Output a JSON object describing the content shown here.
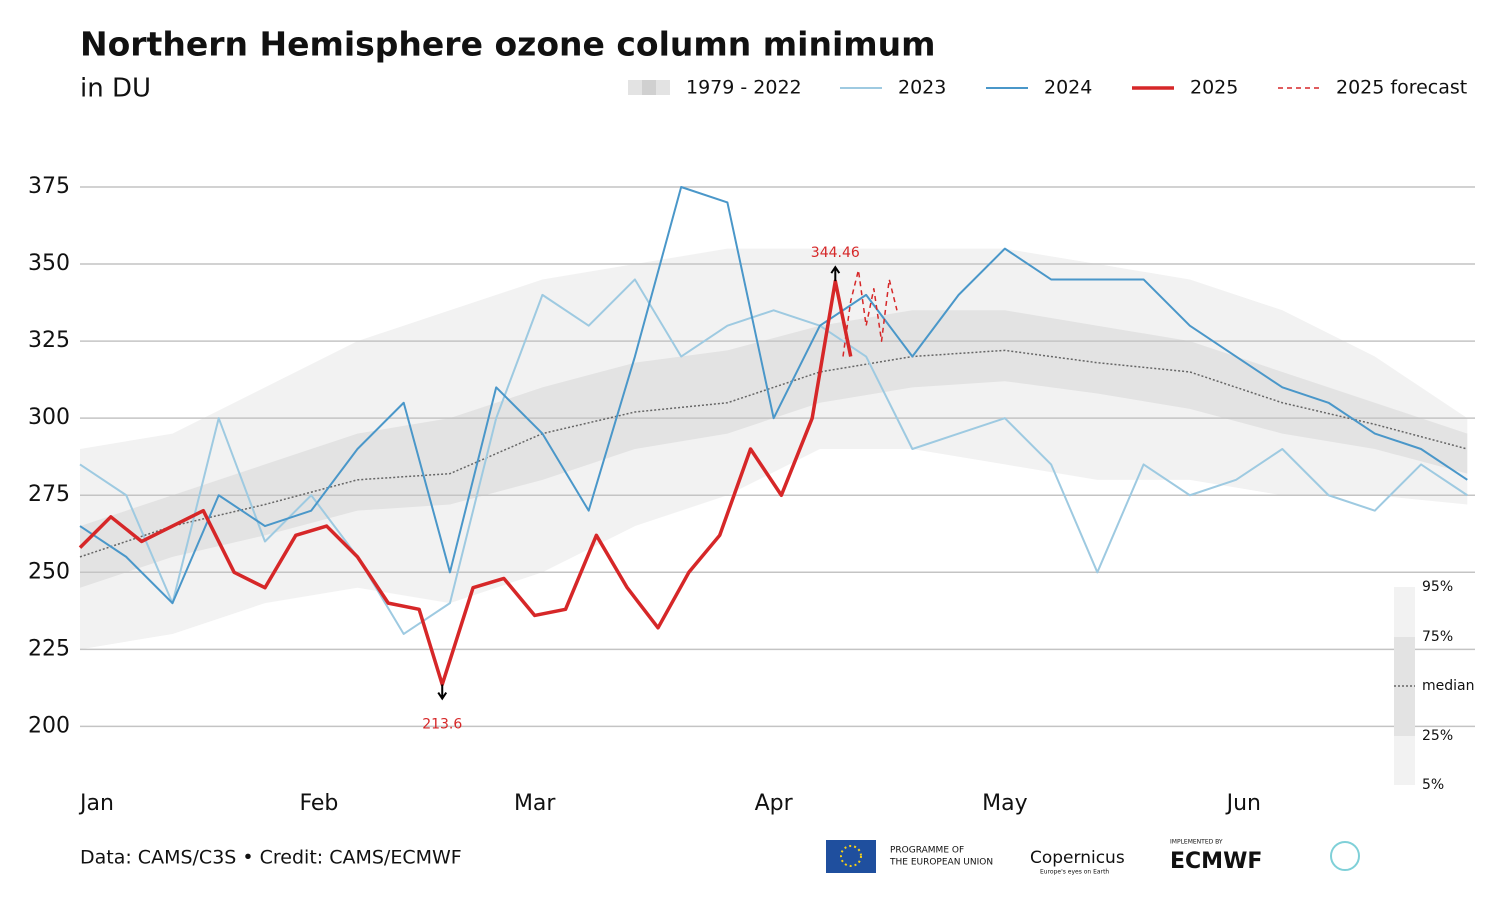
{
  "chart_data": {
    "type": "line",
    "title": "Northern Hemisphere ozone column minimum",
    "subtitle": "in DU",
    "source": "Data: CAMS/C3S • Credit: CAMS/ECMWF",
    "logos": [
      "PROGRAMME OF",
      "THE EUROPEAN UNION",
      "Copernicus",
      "Europe's eyes on Earth",
      "IMPLEMENTED BY",
      "ECMWF"
    ],
    "xlim": [
      1,
      182
    ],
    "xticks": [
      {
        "value": 1,
        "label": "Jan"
      },
      {
        "value": 32,
        "label": "Feb"
      },
      {
        "value": 60,
        "label": "Mar"
      },
      {
        "value": 91,
        "label": "Apr"
      },
      {
        "value": 121,
        "label": "May"
      },
      {
        "value": 152,
        "label": "Jun"
      }
    ],
    "ylim": [
      181,
      387
    ],
    "yticks": [
      200,
      225,
      250,
      275,
      300,
      325,
      350,
      375
    ],
    "grid": true,
    "legend": "top-right",
    "climatology": {
      "name": "1979 - 2022",
      "x": [
        1,
        13,
        25,
        37,
        49,
        61,
        73,
        85,
        97,
        109,
        121,
        133,
        145,
        157,
        169,
        181
      ],
      "p5": [
        225,
        230,
        240,
        245,
        240,
        250,
        265,
        275,
        290,
        290,
        285,
        280,
        280,
        275,
        275,
        272
      ],
      "p25": [
        245,
        255,
        262,
        270,
        272,
        280,
        290,
        295,
        305,
        310,
        312,
        308,
        303,
        295,
        290,
        282
      ],
      "median": [
        255,
        265,
        272,
        280,
        282,
        295,
        302,
        305,
        315,
        320,
        322,
        318,
        315,
        305,
        298,
        290
      ],
      "p75": [
        265,
        275,
        285,
        295,
        300,
        310,
        318,
        322,
        330,
        335,
        335,
        330,
        325,
        315,
        305,
        295
      ],
      "p95": [
        290,
        295,
        310,
        325,
        335,
        345,
        350,
        355,
        355,
        355,
        355,
        350,
        345,
        335,
        320,
        300
      ],
      "band_colors": [
        "#f2f2f2",
        "#e3e3e3"
      ],
      "median_color": "#666666",
      "percentile_labels": [
        "95%",
        "75%",
        "median",
        "25%",
        "5%"
      ]
    },
    "series": [
      {
        "name": "2023",
        "color": "#9ecae1",
        "width": 2,
        "x": [
          1,
          7,
          13,
          19,
          25,
          31,
          37,
          43,
          49,
          55,
          61,
          67,
          73,
          79,
          85,
          91,
          97,
          103,
          109,
          115,
          121,
          127,
          133,
          139,
          145,
          151,
          157,
          163,
          169,
          175,
          181
        ],
        "values": [
          285,
          275,
          240,
          300,
          260,
          275,
          255,
          230,
          240,
          300,
          340,
          330,
          345,
          320,
          330,
          335,
          330,
          320,
          290,
          295,
          300,
          285,
          250,
          285,
          275,
          280,
          290,
          275,
          270,
          285,
          275
        ]
      },
      {
        "name": "2024",
        "color": "#4a97c9",
        "width": 2,
        "x": [
          1,
          7,
          13,
          19,
          25,
          31,
          37,
          43,
          49,
          55,
          61,
          67,
          73,
          79,
          85,
          91,
          97,
          103,
          109,
          115,
          121,
          127,
          133,
          139,
          145,
          151,
          157,
          163,
          169,
          175,
          181
        ],
        "values": [
          265,
          255,
          240,
          275,
          265,
          270,
          290,
          305,
          250,
          310,
          295,
          270,
          320,
          375,
          370,
          300,
          330,
          340,
          320,
          340,
          355,
          345,
          345,
          345,
          330,
          320,
          310,
          305,
          295,
          290,
          280
        ]
      },
      {
        "name": "2025",
        "color": "#d62728",
        "width": 3.5,
        "x": [
          1,
          5,
          9,
          13,
          17,
          21,
          25,
          29,
          33,
          37,
          41,
          45,
          48,
          52,
          56,
          60,
          64,
          68,
          72,
          76,
          80,
          84,
          88,
          92,
          96,
          99,
          101
        ],
        "values": [
          258,
          268,
          260,
          265,
          270,
          250,
          245,
          262,
          265,
          255,
          240,
          238,
          213.6,
          245,
          248,
          236,
          238,
          262,
          245,
          232,
          250,
          262,
          290,
          275,
          300,
          344.46,
          320
        ]
      },
      {
        "name": "2025 forecast",
        "color": "#d62728",
        "width": 1.5,
        "dash": "5,4",
        "x": [
          100,
          101,
          102,
          103,
          104,
          105,
          106,
          107
        ],
        "values": [
          320,
          338,
          348,
          330,
          342,
          325,
          345,
          335
        ]
      }
    ],
    "extremes": [
      {
        "x": 48,
        "value": 213.6,
        "dir": "down"
      },
      {
        "x": 99,
        "value": 344.46,
        "dir": "up"
      }
    ]
  }
}
